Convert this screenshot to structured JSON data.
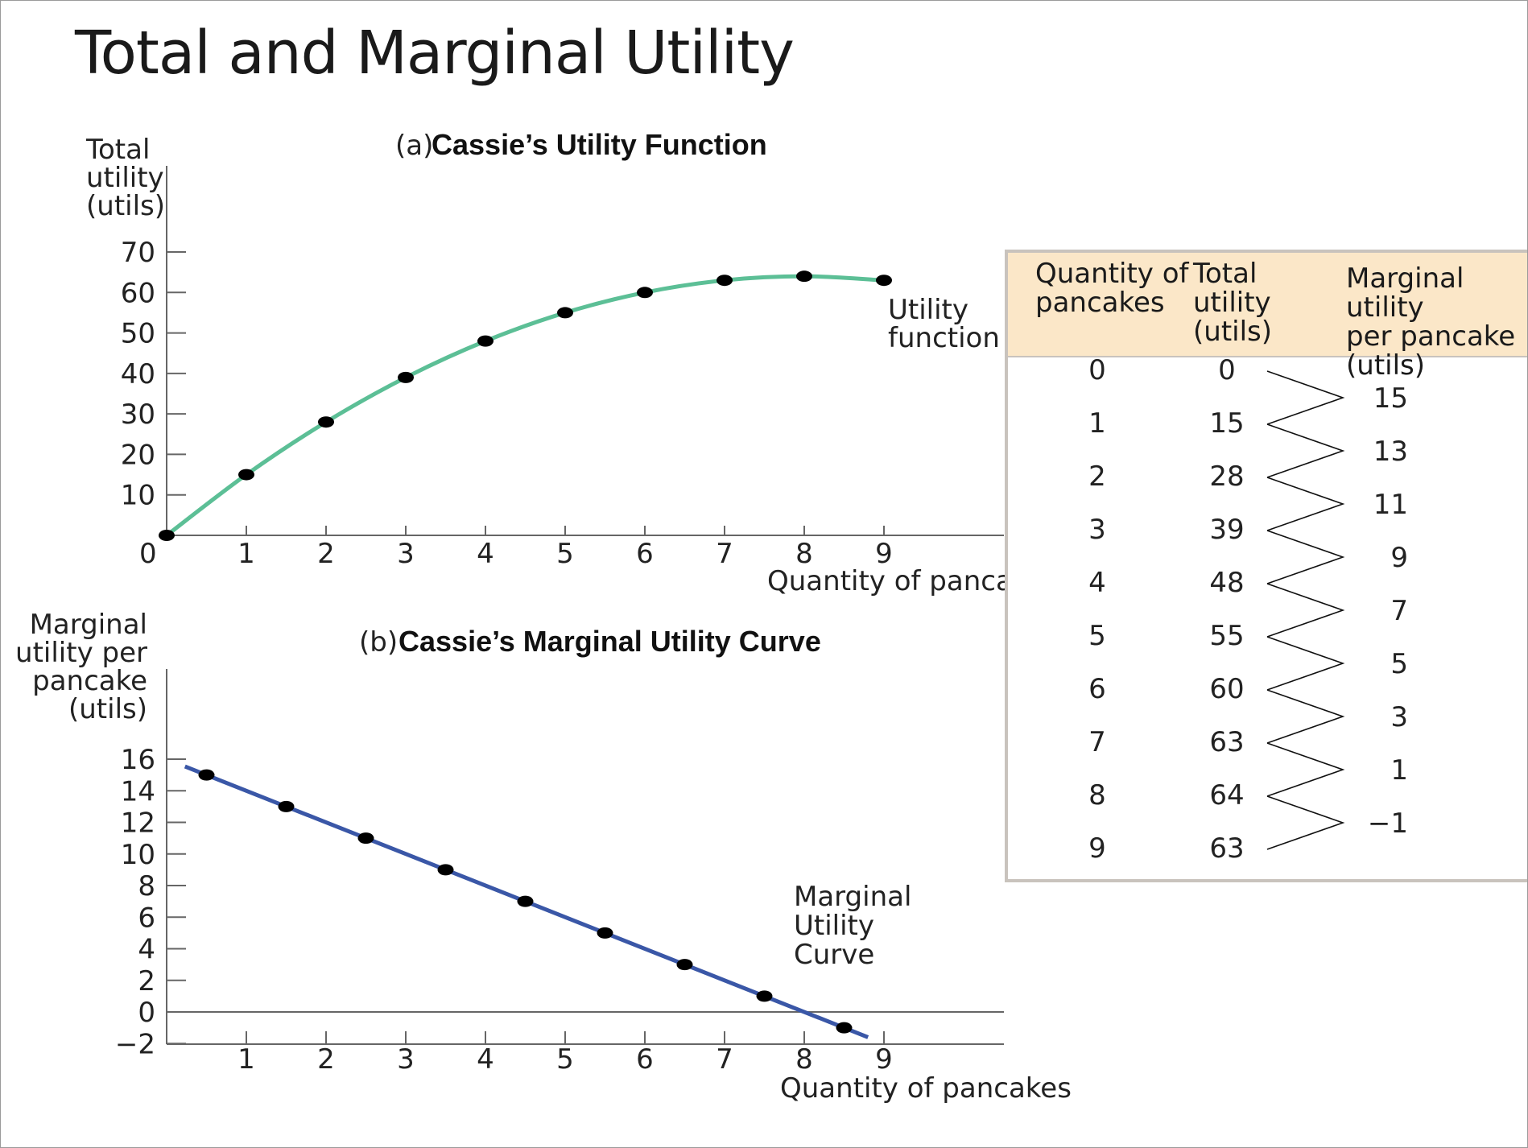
{
  "title": "Total and Marginal Utility",
  "chart_data": [
    {
      "type": "line",
      "panel": "(a)",
      "title": "Cassie’s Utility Function",
      "ylabel": [
        "Total",
        "utility",
        "(utils)"
      ],
      "xlabel": "Quantity of pancakes",
      "x": [
        0,
        1,
        2,
        3,
        4,
        5,
        6,
        7,
        8,
        9
      ],
      "series": [
        {
          "name": "Utility function",
          "values": [
            0,
            15,
            28,
            39,
            48,
            55,
            60,
            63,
            64,
            63
          ]
        }
      ],
      "curve_label": [
        "Utility",
        "function"
      ],
      "xlim": [
        0,
        9
      ],
      "ylim": [
        0,
        70
      ],
      "xticks": [
        "1",
        "2",
        "3",
        "4",
        "5",
        "6",
        "7",
        "8",
        "9"
      ],
      "yticks": [
        "10",
        "20",
        "30",
        "40",
        "50",
        "60",
        "70"
      ],
      "origin_label": "0",
      "color": "#5cbf96"
    },
    {
      "type": "line",
      "panel": "(b)",
      "title": "Cassie’s Marginal Utility Curve",
      "ylabel": [
        "Marginal",
        "utility per",
        "pancake",
        "(utils)"
      ],
      "xlabel": "Quantity of pancakes",
      "x": [
        0.5,
        1.5,
        2.5,
        3.5,
        4.5,
        5.5,
        6.5,
        7.5,
        8.5
      ],
      "series": [
        {
          "name": "Marginal Utility Curve",
          "values": [
            15,
            13,
            11,
            9,
            7,
            5,
            3,
            1,
            -1
          ]
        }
      ],
      "curve_label": [
        "Marginal",
        "Utility",
        "Curve"
      ],
      "xlim": [
        0,
        9
      ],
      "ylim": [
        -2,
        16
      ],
      "xticks": [
        "1",
        "2",
        "3",
        "4",
        "5",
        "6",
        "7",
        "8",
        "9"
      ],
      "yticks": [
        "−2",
        "0",
        "2",
        "4",
        "6",
        "8",
        "10",
        "12",
        "14",
        "16"
      ],
      "color": "#3a57a7"
    },
    {
      "type": "table",
      "columns": [
        "Quantity of\npancakes",
        "Total\nutility\n(utils)",
        "Marginal utility\nper pancake\n(utils)"
      ],
      "quantity": [
        "0",
        "1",
        "2",
        "3",
        "4",
        "5",
        "6",
        "7",
        "8",
        "9"
      ],
      "total_utility": [
        "0",
        "15",
        "28",
        "39",
        "48",
        "55",
        "60",
        "63",
        "64",
        "63"
      ],
      "marginal_utility": [
        "15",
        "13",
        "11",
        "9",
        "7",
        "5",
        "3",
        "1",
        "−1"
      ],
      "header_color": "#fbe7c8"
    }
  ]
}
